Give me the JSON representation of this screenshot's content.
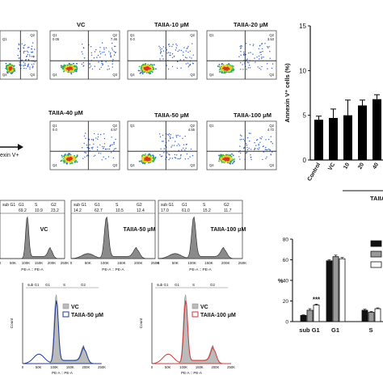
{
  "flow_panels": [
    {
      "label": "",
      "q": [
        "",
        "Q1",
        "Q2",
        "",
        "Q4",
        "Q3"
      ],
      "partial": true
    },
    {
      "label": "VC",
      "q": [
        "Q1",
        "0.05",
        "Q2",
        "7.46",
        "Q4",
        "Q3"
      ]
    },
    {
      "label": "TAIIA-10 μM",
      "q": [
        "Q1",
        "0.0",
        "Q2",
        "",
        "Q4",
        "Q3"
      ]
    },
    {
      "label": "TAIIA-20 μM",
      "q": [
        "Q1",
        "",
        "Q2",
        "3.53",
        "Q4",
        "Q3"
      ]
    },
    {
      "label": "TAIIA-40 μM",
      "q": [
        "Q1",
        "0.0",
        "Q2",
        "4.57",
        "Q4",
        "Q3"
      ]
    },
    {
      "label": "TAIIA-50 μM",
      "q": [
        "Q1",
        "",
        "Q2",
        "4.55",
        "Q4",
        "Q3"
      ]
    },
    {
      "label": "TAIIA-100 μM",
      "q": [
        "Q1",
        "",
        "Q2",
        "4.72",
        "Q4",
        "Q3"
      ]
    }
  ],
  "annexin_label": "exin V+",
  "cc_panels": [
    {
      "label": "VC",
      "header": [
        "sub G1",
        "G1",
        "S",
        "G2"
      ],
      "values": [
        "",
        "69.2",
        "10.9",
        "23.2"
      ],
      "partial": true
    },
    {
      "label": "TAIIA-50 μM",
      "header": [
        "sub G1",
        "G1",
        "S",
        "G2"
      ],
      "values": [
        "14.2",
        "62.7",
        "10.5",
        "12.4"
      ]
    },
    {
      "label": "TAIIA-100 μM",
      "header": [
        "sub G1",
        "G1",
        "S",
        "G2"
      ],
      "values": [
        "17.0",
        "61.0",
        "15.2",
        "11.7"
      ]
    }
  ],
  "cc_xlabel": "PE-A :: PE-A",
  "cc_xticks": [
    "0",
    "50K",
    "100K",
    "150K",
    "200K",
    "250K"
  ],
  "overlay_panels": [
    {
      "legend": [
        "VC",
        "TAIIA-50 μM"
      ],
      "color": "#1f3a9a",
      "header": [
        "sub G1",
        "G1",
        "S",
        "G2"
      ]
    },
    {
      "legend": [
        "VC",
        "TAIIA-100 μM"
      ],
      "color": "#d23a3a",
      "header": [
        "sub G1",
        "G1",
        "S",
        "G2"
      ]
    }
  ],
  "overlay_ylabel": "Count",
  "chart_data": [
    {
      "type": "bar",
      "ylabel": "Annexin V⁺ cells (%)",
      "categories": [
        "Control",
        "VC",
        "10",
        "20",
        "40"
      ],
      "values": [
        4.5,
        4.7,
        5.0,
        6.1,
        6.8
      ],
      "errors": [
        0.4,
        1.0,
        1.7,
        0.6,
        0.5
      ],
      "ylim": [
        0,
        15
      ],
      "yticks": [
        "0",
        "5",
        "10",
        "15"
      ],
      "group_label": "TAIIA"
    },
    {
      "type": "bar",
      "ylabel": "%",
      "categories": [
        "sub G1",
        "G1",
        "S"
      ],
      "series": [
        {
          "color": "#111111",
          "values": [
            6.0,
            59.0,
            11.0
          ],
          "errors": [
            0.5,
            1.0,
            1.0
          ]
        },
        {
          "color": "#999999",
          "values": [
            11.0,
            63.0,
            9.0
          ],
          "errors": [
            1.5,
            1.5,
            0.8
          ]
        },
        {
          "color": "#ffffff",
          "values": [
            16.0,
            61.0,
            12.5
          ],
          "errors": [
            1.0,
            1.2,
            0.8
          ]
        }
      ],
      "ylim": [
        0,
        80
      ],
      "yticks": [
        "0",
        "20",
        "40",
        "60",
        "80"
      ],
      "significance": "***"
    }
  ]
}
